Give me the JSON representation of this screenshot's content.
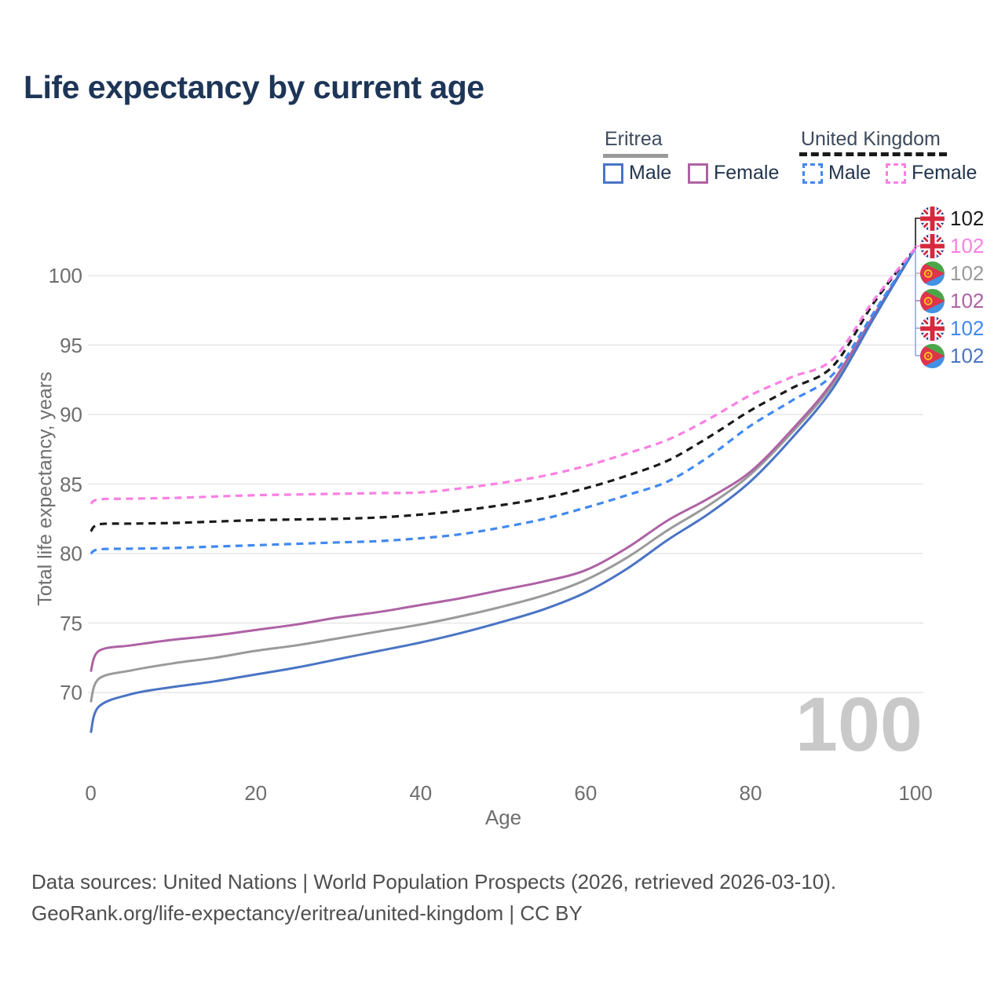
{
  "chart_data": {
    "type": "line",
    "title": "Life expectancy by current age",
    "xlabel": "Age",
    "ylabel": "Total life expectancy, years",
    "x_ticks": [
      0,
      20,
      40,
      60,
      80,
      100
    ],
    "y_ticks": [
      70,
      75,
      80,
      85,
      90,
      95,
      100
    ],
    "xlim": [
      0,
      100
    ],
    "ylim": [
      66,
      103
    ],
    "grid": "horizontal",
    "x": [
      0,
      1,
      5,
      10,
      15,
      20,
      25,
      30,
      35,
      40,
      45,
      50,
      55,
      60,
      65,
      70,
      75,
      80,
      85,
      90,
      95,
      100
    ],
    "series": [
      {
        "name": "Eritrea Both sexes",
        "country": "Eritrea",
        "sex": "both",
        "color": "#9a9a9a",
        "dash": false,
        "values": [
          69.3,
          71.0,
          71.6,
          72.1,
          72.5,
          73.0,
          73.4,
          73.9,
          74.4,
          74.9,
          75.5,
          76.2,
          77.0,
          78.1,
          79.7,
          81.7,
          83.5,
          85.7,
          88.7,
          92.2,
          97.1,
          102
        ]
      },
      {
        "name": "Eritrea Female",
        "country": "Eritrea",
        "sex": "female",
        "color": "#ae62a4",
        "dash": false,
        "values": [
          71.5,
          73.0,
          73.4,
          73.8,
          74.1,
          74.5,
          74.9,
          75.4,
          75.8,
          76.3,
          76.8,
          77.4,
          78.0,
          78.8,
          80.4,
          82.4,
          84.0,
          85.9,
          88.9,
          92.4,
          97.2,
          102
        ]
      },
      {
        "name": "Eritrea Male",
        "country": "Eritrea",
        "sex": "male",
        "color": "#4a74c4",
        "dash": false,
        "values": [
          67.1,
          69.0,
          69.9,
          70.4,
          70.8,
          71.3,
          71.8,
          72.4,
          73.0,
          73.6,
          74.3,
          75.1,
          76.0,
          77.2,
          78.9,
          81.0,
          82.9,
          85.2,
          88.3,
          91.9,
          97.0,
          102
        ]
      },
      {
        "name": "United Kingdom Both sexes",
        "country": "United Kingdom",
        "sex": "both",
        "color": "#1a1a1a",
        "dash": true,
        "values": [
          81.6,
          82.1,
          82.15,
          82.2,
          82.3,
          82.4,
          82.45,
          82.5,
          82.6,
          82.8,
          83.1,
          83.5,
          84.0,
          84.7,
          85.6,
          86.7,
          88.4,
          90.3,
          91.9,
          93.5,
          98.1,
          102
        ]
      },
      {
        "name": "United Kingdom Male",
        "country": "United Kingdom",
        "sex": "male",
        "color": "#4189f0",
        "dash": true,
        "values": [
          80.0,
          80.3,
          80.35,
          80.4,
          80.5,
          80.6,
          80.7,
          80.8,
          80.9,
          81.1,
          81.4,
          81.9,
          82.5,
          83.3,
          84.2,
          85.2,
          87.0,
          89.2,
          91.0,
          92.9,
          97.4,
          102
        ]
      },
      {
        "name": "United Kingdom Female",
        "country": "United Kingdom",
        "sex": "female",
        "color": "#fb7fe3",
        "dash": true,
        "values": [
          83.6,
          83.9,
          83.95,
          84.0,
          84.1,
          84.2,
          84.25,
          84.3,
          84.35,
          84.4,
          84.7,
          85.1,
          85.6,
          86.3,
          87.2,
          88.2,
          89.7,
          91.4,
          92.7,
          94.0,
          98.3,
          102
        ]
      }
    ],
    "legend_position": "top-right"
  },
  "legend": {
    "eritrea": {
      "label": "Eritrea",
      "underline_color": "#999999",
      "underline_style": "solid",
      "male": {
        "label": "Male",
        "color": "#4a74c4"
      },
      "female": {
        "label": "Female",
        "color": "#ae62a4"
      }
    },
    "uk": {
      "label": "United Kingdom",
      "underline_color": "#1a1a1a",
      "underline_style": "dashed",
      "male": {
        "label": "Male",
        "color": "#4189f0"
      },
      "female": {
        "label": "Female",
        "color": "#fb7fe3"
      }
    }
  },
  "end_labels": [
    {
      "flag": "uk",
      "value": "102",
      "color": "#1a1a1a",
      "series": "United Kingdom Both sexes"
    },
    {
      "flag": "uk",
      "value": "102",
      "color": "#fb7fe3",
      "series": "United Kingdom Female"
    },
    {
      "flag": "eritrea",
      "value": "102",
      "color": "#9a9a9a",
      "series": "Eritrea Both sexes"
    },
    {
      "flag": "eritrea",
      "value": "102",
      "color": "#ae62a4",
      "series": "Eritrea Female"
    },
    {
      "flag": "uk",
      "value": "102",
      "color": "#4189f0",
      "series": "United Kingdom Male"
    },
    {
      "flag": "eritrea",
      "value": "102",
      "color": "#4a74c4",
      "series": "Eritrea Male"
    }
  ],
  "watermark": "100",
  "source": {
    "line1": "Data sources: United Nations | World Population Prospects (2026, retrieved 2026-03-10).",
    "line2": "GeoRank.org/life-expectancy/eritrea/united-kingdom | CC BY"
  }
}
